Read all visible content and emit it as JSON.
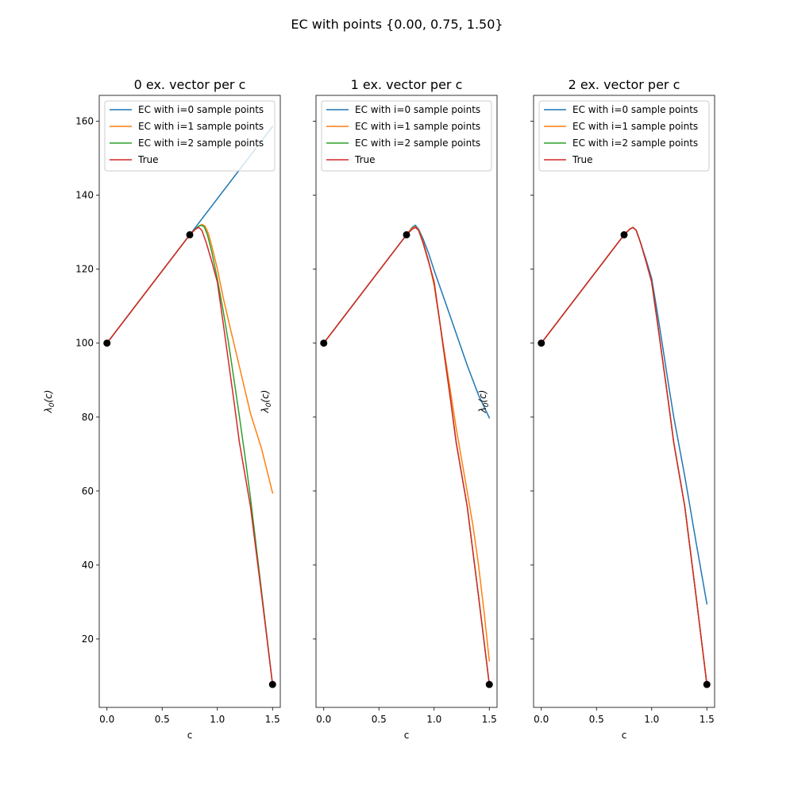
{
  "suptitle": "EC with points {0.00, 0.75, 1.50}",
  "colors": {
    "ec0": "#1f77b4",
    "ec1": "#ff7f0e",
    "ec2": "#2ca02c",
    "true": "#d62728",
    "points": "#000000"
  },
  "chart_data": [
    {
      "type": "line",
      "title": "0 ex. vector per c",
      "xlabel": "c",
      "ylabel": "λ0(c)",
      "xlim": [
        -0.07,
        1.57
      ],
      "ylim": [
        1.5,
        167
      ],
      "xticks": [
        0.0,
        0.5,
        1.0,
        1.5
      ],
      "xtick_labels": [
        "0.0",
        "0.5",
        "1.0",
        "1.5"
      ],
      "yticks": [
        20,
        40,
        60,
        80,
        100,
        120,
        140,
        160
      ],
      "ytick_labels": [
        "20",
        "40",
        "60",
        "80",
        "100",
        "120",
        "140",
        "160"
      ],
      "show_ytick_labels": true,
      "legend": "upper left",
      "series": [
        {
          "name": "EC with i=0 sample points",
          "color_key": "ec0",
          "x": [
            0.0,
            0.75,
            1.5
          ],
          "y": [
            100,
            129.3,
            158.6
          ]
        },
        {
          "name": "EC with i=1 sample points",
          "color_key": "ec1",
          "x": [
            0.0,
            0.75,
            0.83,
            0.86,
            0.89,
            0.92,
            0.95,
            1.0,
            1.05,
            1.1,
            1.2,
            1.3,
            1.4,
            1.5
          ],
          "y": [
            100,
            129.3,
            131.6,
            132.1,
            131.6,
            129.5,
            126.2,
            120.1,
            112.7,
            106.2,
            93.6,
            81.0,
            71.5,
            59.5
          ]
        },
        {
          "name": "EC with i=2 sample points",
          "color_key": "ec2",
          "x": [
            0.0,
            0.75,
            0.82,
            0.85,
            0.88,
            0.91,
            0.95,
            1.0,
            1.05,
            1.1,
            1.15,
            1.2,
            1.25,
            1.3,
            1.4,
            1.5
          ],
          "y": [
            100,
            129.3,
            131.4,
            131.9,
            131.5,
            129.3,
            124.6,
            117.3,
            109.2,
            100.3,
            90.3,
            80.1,
            69.5,
            58.2,
            33.0,
            7.7
          ]
        },
        {
          "name": "True",
          "color_key": "true",
          "x": [
            0.0,
            0.75,
            0.8,
            0.83,
            0.86,
            0.9,
            0.95,
            1.0,
            1.05,
            1.1,
            1.15,
            1.2,
            1.3,
            1.4,
            1.5
          ],
          "y": [
            100,
            129.3,
            130.8,
            131.3,
            130.5,
            127.1,
            122.0,
            116.5,
            106.0,
            95.2,
            84.4,
            73.1,
            55.8,
            32.1,
            7.7
          ]
        }
      ],
      "sample_points": {
        "x": [
          0.0,
          0.75,
          1.5
        ],
        "y": [
          100,
          129.3,
          7.7
        ]
      }
    },
    {
      "type": "line",
      "title": "1 ex. vector per c",
      "xlabel": "c",
      "ylabel": "λ0(c)",
      "xlim": [
        -0.07,
        1.57
      ],
      "ylim": [
        1.5,
        167
      ],
      "xticks": [
        0.0,
        0.5,
        1.0,
        1.5
      ],
      "xtick_labels": [
        "0.0",
        "0.5",
        "1.0",
        "1.5"
      ],
      "yticks": [
        20,
        40,
        60,
        80,
        100,
        120,
        140,
        160
      ],
      "ytick_labels": [
        "20",
        "40",
        "60",
        "80",
        "100",
        "120",
        "140",
        "160"
      ],
      "show_ytick_labels": false,
      "legend": "upper left",
      "series": [
        {
          "name": "EC with i=0 sample points",
          "color_key": "ec0",
          "x": [
            0.0,
            0.75,
            0.8,
            0.83,
            0.86,
            0.9,
            0.95,
            1.0,
            1.1,
            1.2,
            1.3,
            1.4,
            1.5
          ],
          "y": [
            100,
            129.3,
            131.3,
            131.9,
            130.8,
            128.2,
            124.3,
            119.7,
            111.2,
            102.6,
            94.0,
            86.1,
            79.8
          ]
        },
        {
          "name": "EC with i=1 sample points",
          "color_key": "ec1",
          "x": [
            0.0,
            0.75,
            0.8,
            0.83,
            0.86,
            0.9,
            0.95,
            1.0,
            1.05,
            1.1,
            1.2,
            1.3,
            1.35,
            1.4,
            1.45,
            1.5
          ],
          "y": [
            100,
            129.3,
            131.1,
            131.5,
            130.6,
            127.5,
            122.3,
            115.6,
            105.9,
            96.3,
            77.0,
            59.8,
            51.0,
            40.5,
            28.0,
            14.1
          ]
        },
        {
          "name": "EC with i=2 sample points",
          "color_key": "ec2",
          "x": [
            0.0,
            0.75,
            0.8,
            0.83,
            0.86,
            0.9,
            0.95,
            1.0,
            1.05,
            1.1,
            1.15,
            1.2,
            1.3,
            1.4,
            1.5
          ],
          "y": [
            100,
            129.3,
            130.8,
            131.3,
            130.5,
            127.1,
            122.0,
            116.5,
            106.0,
            95.2,
            84.4,
            73.1,
            55.8,
            32.1,
            7.7
          ]
        },
        {
          "name": "True",
          "color_key": "true",
          "x": [
            0.0,
            0.75,
            0.8,
            0.83,
            0.86,
            0.9,
            0.95,
            1.0,
            1.05,
            1.1,
            1.15,
            1.2,
            1.3,
            1.4,
            1.5
          ],
          "y": [
            100,
            129.3,
            130.8,
            131.3,
            130.5,
            127.1,
            122.0,
            116.5,
            106.0,
            95.2,
            84.4,
            73.1,
            55.8,
            32.1,
            7.7
          ]
        }
      ],
      "sample_points": {
        "x": [
          0.0,
          0.75,
          1.5
        ],
        "y": [
          100,
          129.3,
          7.7
        ]
      }
    },
    {
      "type": "line",
      "title": "2 ex. vector per c",
      "xlabel": "c",
      "ylabel": "λ0(c)",
      "xlim": [
        -0.07,
        1.57
      ],
      "ylim": [
        1.5,
        167
      ],
      "xticks": [
        0.0,
        0.5,
        1.0,
        1.5
      ],
      "xtick_labels": [
        "0.0",
        "0.5",
        "1.0",
        "1.5"
      ],
      "yticks": [
        20,
        40,
        60,
        80,
        100,
        120,
        140,
        160
      ],
      "ytick_labels": [
        "20",
        "40",
        "60",
        "80",
        "100",
        "120",
        "140",
        "160"
      ],
      "show_ytick_labels": false,
      "legend": "upper left",
      "series": [
        {
          "name": "EC with i=0 sample points",
          "color_key": "ec0",
          "x": [
            0.0,
            0.75,
            0.8,
            0.83,
            0.86,
            0.9,
            0.95,
            1.0,
            1.05,
            1.1,
            1.15,
            1.2,
            1.3,
            1.4,
            1.5
          ],
          "y": [
            100,
            129.3,
            130.8,
            131.3,
            130.5,
            127.1,
            122.5,
            117.5,
            108.5,
            99.0,
            89.3,
            80.0,
            64.0,
            46.5,
            29.5
          ]
        },
        {
          "name": "EC with i=1 sample points",
          "color_key": "ec1",
          "x": [
            0.0,
            0.75,
            0.8,
            0.83,
            0.86,
            0.9,
            0.95,
            1.0,
            1.05,
            1.1,
            1.15,
            1.2,
            1.3,
            1.4,
            1.5
          ],
          "y": [
            100,
            129.3,
            130.8,
            131.3,
            130.5,
            127.1,
            122.0,
            116.5,
            106.0,
            95.2,
            84.4,
            73.1,
            55.8,
            32.1,
            7.7
          ]
        },
        {
          "name": "EC with i=2 sample points",
          "color_key": "ec2",
          "x": [
            0.0,
            0.75,
            0.8,
            0.83,
            0.86,
            0.9,
            0.95,
            1.0,
            1.05,
            1.1,
            1.15,
            1.2,
            1.3,
            1.4,
            1.5
          ],
          "y": [
            100,
            129.3,
            130.8,
            131.3,
            130.5,
            127.1,
            122.0,
            116.5,
            106.0,
            95.2,
            84.4,
            73.1,
            55.8,
            32.1,
            7.7
          ]
        },
        {
          "name": "True",
          "color_key": "true",
          "x": [
            0.0,
            0.75,
            0.8,
            0.83,
            0.86,
            0.9,
            0.95,
            1.0,
            1.05,
            1.1,
            1.15,
            1.2,
            1.3,
            1.4,
            1.5
          ],
          "y": [
            100,
            129.3,
            130.8,
            131.3,
            130.5,
            127.1,
            122.0,
            116.5,
            106.0,
            95.2,
            84.4,
            73.1,
            55.8,
            32.1,
            7.7
          ]
        }
      ],
      "sample_points": {
        "x": [
          0.0,
          0.75,
          1.5
        ],
        "y": [
          100,
          129.3,
          7.7
        ]
      }
    }
  ]
}
